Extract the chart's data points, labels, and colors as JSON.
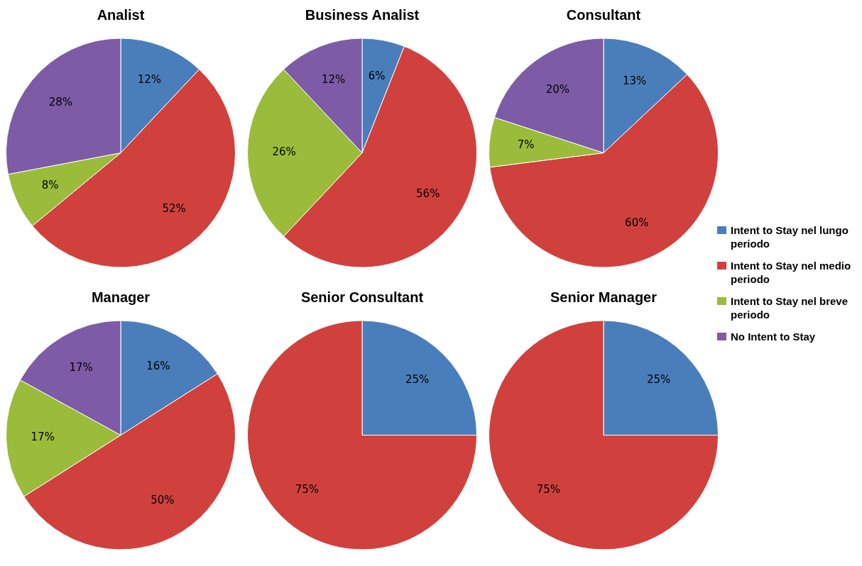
{
  "chart_data": [
    {
      "type": "pie",
      "title": "Analist",
      "categories": [
        "Intent to Stay nel lungo periodo",
        "Intent to Stay nel medio periodo",
        "Intent to Stay nel breve periodo",
        "No Intent to Stay"
      ],
      "values": [
        12,
        52,
        8,
        28
      ],
      "value_labels": [
        "12%",
        "52%",
        "8%",
        "28%"
      ],
      "colors": [
        "#4a7ebb",
        "#d0413e",
        "#9bbb3a",
        "#7d5ba6"
      ],
      "legend": "right"
    },
    {
      "type": "pie",
      "title": "Business Analist",
      "categories": [
        null,
        null,
        null,
        null
      ],
      "values": [
        6,
        56,
        26,
        12
      ],
      "value_labels": [
        "6%",
        "56%",
        "26%",
        "12%"
      ],
      "colors": [
        "#4a7ebb",
        "#d0413e",
        "#9bbb3a",
        "#7d5ba6"
      ]
    },
    {
      "type": "pie",
      "title": "Consultant",
      "categories": [
        null,
        null,
        null,
        null
      ],
      "values": [
        13,
        60,
        7,
        20
      ],
      "value_labels": [
        "13%",
        "60%",
        "7%",
        "20%"
      ],
      "colors": [
        "#4a7ebb",
        "#d0413e",
        "#9bbb3a",
        "#7d5ba6"
      ]
    },
    {
      "type": "pie",
      "title": "Manager",
      "categories": [
        null,
        null,
        null,
        null
      ],
      "values": [
        16,
        50,
        17,
        17
      ],
      "value_labels": [
        "16%",
        "50%",
        "17%",
        "17%"
      ],
      "colors": [
        "#4a7ebb",
        "#d0413e",
        "#9bbb3a",
        "#7d5ba6"
      ]
    },
    {
      "type": "pie",
      "title": "Senior Consultant",
      "categories": [
        null,
        null
      ],
      "values": [
        25,
        75
      ],
      "value_labels": [
        "25%",
        "75%"
      ],
      "colors": [
        "#4a7ebb",
        "#d0413e"
      ]
    },
    {
      "type": "pie",
      "title": "Senior Manager",
      "categories": [
        null,
        null
      ],
      "values": [
        25,
        75
      ],
      "value_labels": [
        "25%",
        "75%"
      ],
      "colors": [
        "#4a7ebb",
        "#d0413e"
      ]
    }
  ]
}
